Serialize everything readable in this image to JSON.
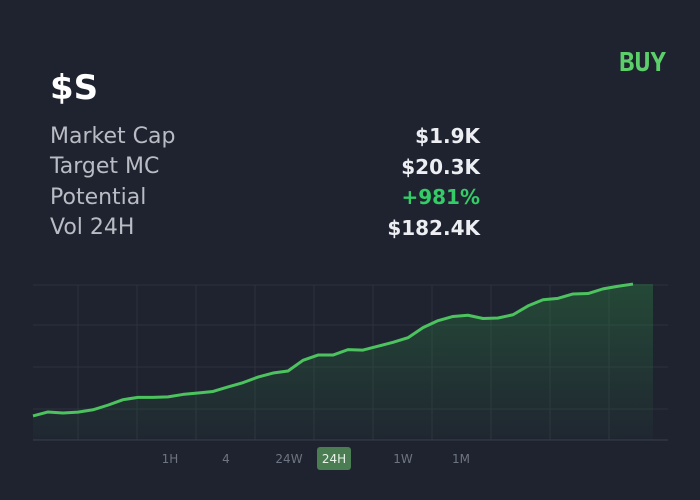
{
  "header": {
    "ticker": "$S",
    "action": "BUY"
  },
  "stats": [
    {
      "label": "Market Cap",
      "value": "$1.9K"
    },
    {
      "label": "Target MC",
      "value": "$20.3K"
    },
    {
      "label": "Potential",
      "value": "+981%",
      "positive": true
    },
    {
      "label": "Vol 24H",
      "value": "$182.4K"
    }
  ],
  "chart_data": {
    "type": "line",
    "color": "#4cc35e",
    "values": [
      15.5,
      18.1,
      17.4,
      18,
      19.5,
      22.5,
      26,
      27.5,
      27.5,
      27.8,
      29.4,
      30.3,
      31.3,
      34.2,
      37,
      40.6,
      43.2,
      44.5,
      51.4,
      54.8,
      54.8,
      58.3,
      58,
      60.5,
      63,
      66,
      72.5,
      77,
      79.7,
      80.5,
      78.4,
      78.7,
      80.8,
      86.5,
      90.5,
      91.4,
      94.2,
      94.5,
      97.5,
      99.2,
      100.6
    ],
    "ylim": [
      0,
      100
    ]
  },
  "timeframes": {
    "options": [
      "1H",
      "4",
      "24W",
      "24H",
      "1W",
      "1M"
    ],
    "active": "24H"
  }
}
